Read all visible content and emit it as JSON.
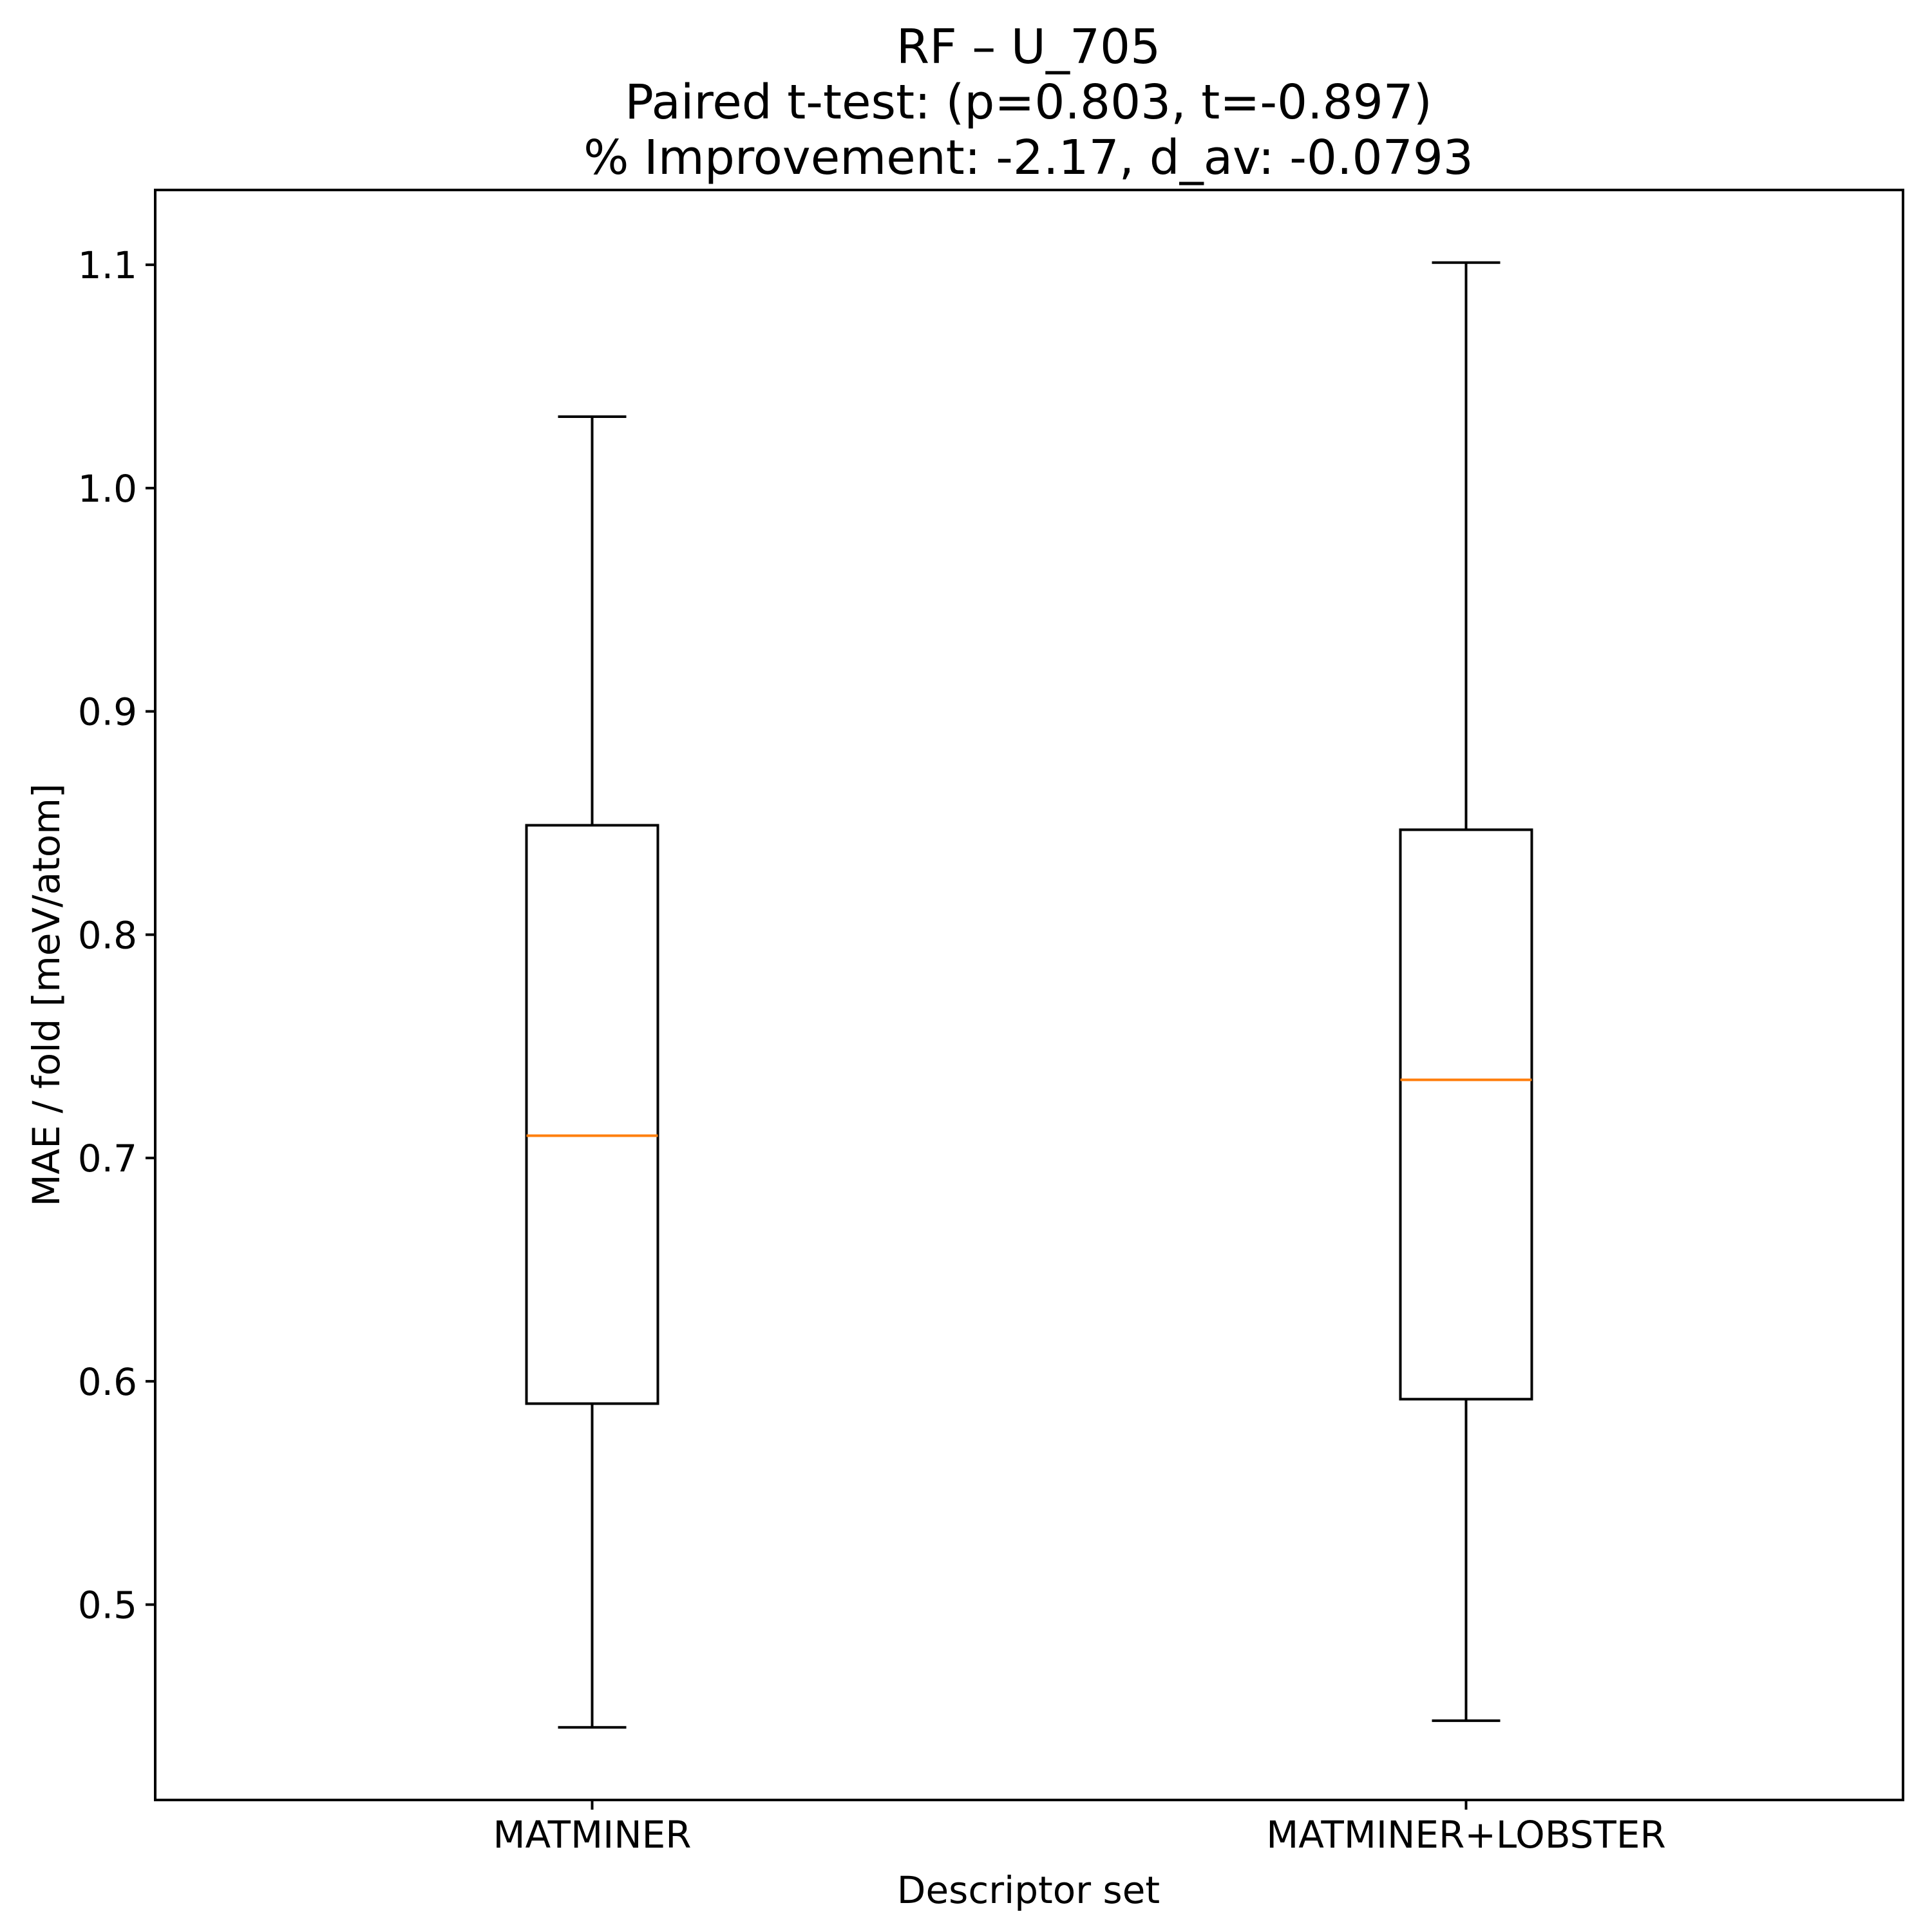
{
  "chart_data": {
    "type": "boxplot",
    "title": "RF – U_705",
    "subtitle_lines": [
      "Paired t-test: (p=0.803, t=-0.897)",
      "% Improvement: -2.17, d_av: -0.0793"
    ],
    "xlabel": "Descriptor set",
    "ylabel": "MAE / fold [meV/atom]",
    "categories": [
      "MATMINER",
      "MATMINER+LOBSTER"
    ],
    "series": [
      {
        "name": "MATMINER",
        "whisker_low": 0.445,
        "q1": 0.59,
        "median": 0.71,
        "q3": 0.849,
        "whisker_high": 1.032
      },
      {
        "name": "MATMINER+LOBSTER",
        "whisker_low": 0.448,
        "q1": 0.592,
        "median": 0.735,
        "q3": 0.847,
        "whisker_high": 1.101
      }
    ],
    "yticks": [
      0.5,
      0.6,
      0.7,
      0.8,
      0.9,
      1.0,
      1.1
    ],
    "ytick_labels": [
      "0.5",
      "0.6",
      "0.7",
      "0.8",
      "0.9",
      "1.0",
      "1.1"
    ],
    "ylim": [
      0.4125,
      1.1335
    ],
    "grid": false,
    "legend": null,
    "colors": {
      "box": "#000000",
      "median": "#ff7f0e",
      "background": "#ffffff"
    }
  }
}
